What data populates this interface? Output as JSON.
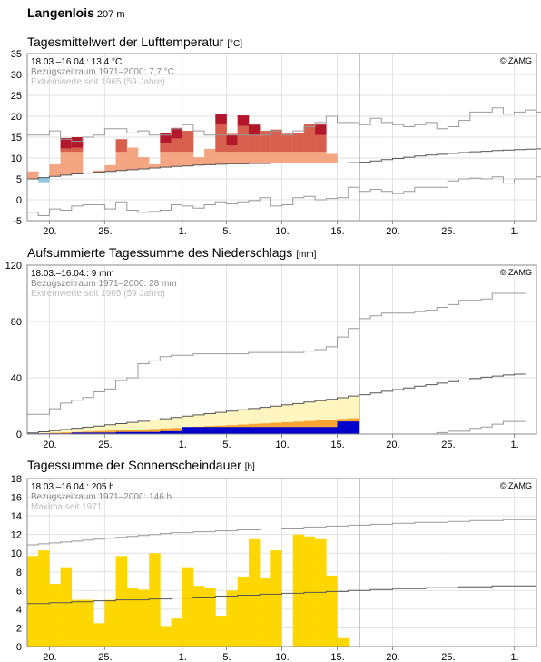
{
  "station": {
    "name": "Langenlois",
    "elevation": "207 m"
  },
  "x_tick_labels": [
    {
      "day": 2,
      "label": "20."
    },
    {
      "day": 7,
      "label": "25."
    },
    {
      "day": 14,
      "label": "1."
    },
    {
      "day": 18,
      "label": "5."
    },
    {
      "day": 23,
      "label": "10."
    },
    {
      "day": 28,
      "label": "15."
    },
    {
      "day": 33,
      "label": "20."
    },
    {
      "day": 38,
      "label": "25."
    },
    {
      "day": 44,
      "label": "1."
    }
  ],
  "copyright": "© ZAMG",
  "chart_data": [
    {
      "id": "temperature",
      "type": "bar",
      "title": "Tagesmittelwert der Lufttemperatur",
      "unit": "[°C]",
      "info": [
        "18.03.–16.04.: 13,4 °C",
        "Bezugszeitraum 1971–2000: 7,7 °C",
        "Extremwerte seit 1965 (59 Jahre)"
      ],
      "ylim": [
        -5,
        35
      ],
      "yticks": [
        -5,
        0,
        5,
        10,
        15,
        20,
        25,
        30,
        35
      ],
      "colors": {
        "above": "#f4a582",
        "warm": "#d6604d",
        "record": "#b2182b",
        "below": "#92c5de"
      },
      "days": [
        0,
        1,
        2,
        3,
        4,
        5,
        6,
        7,
        8,
        9,
        10,
        11,
        12,
        13,
        14,
        15,
        16,
        17,
        18,
        19,
        20,
        21,
        22,
        23,
        24,
        25,
        26,
        27,
        28,
        29
      ],
      "values": [
        6.8,
        4.2,
        8.5,
        14.0,
        14.8,
        0,
        7.0,
        8.3,
        14.5,
        12.5,
        10.2,
        8.5,
        16.0,
        17.2,
        16.5,
        10.2,
        12.2,
        20.5,
        16.0,
        20.2,
        17.2,
        16.5,
        16.8,
        15.8,
        16.0,
        18.2,
        18.0,
        11.0,
        0,
        0
      ],
      "records": [
        0,
        0,
        0,
        14.8,
        15.0,
        0,
        0,
        0,
        0,
        0,
        0,
        0,
        16.0,
        17.2,
        0,
        0,
        0,
        20.5,
        15.5,
        20.2,
        18.0,
        0,
        0,
        0,
        0,
        0,
        18.0,
        0,
        0,
        0
      ],
      "normal": [
        5.0,
        5.3,
        5.6,
        5.9,
        6.2,
        6.4,
        6.6,
        6.8,
        7.0,
        7.2,
        7.4,
        7.6,
        7.8,
        8.0,
        8.1,
        8.3,
        8.4,
        8.5,
        8.6,
        8.6,
        8.7,
        8.7,
        8.8,
        8.8,
        8.8,
        8.8,
        8.8,
        8.8,
        8.8,
        8.9,
        9.0,
        9.3,
        9.6,
        9.9,
        10.2,
        10.5,
        10.7,
        10.9,
        11.1,
        11.3,
        11.5,
        11.6,
        11.8,
        11.9,
        12.0,
        12.1,
        12.2
      ],
      "extreme_max": [
        15.5,
        15.5,
        16.5,
        14.5,
        14.0,
        15.0,
        15.5,
        17.0,
        17.0,
        16.0,
        16.5,
        15.5,
        15.5,
        17.0,
        18.0,
        16.5,
        15.5,
        15.5,
        15.5,
        15.5,
        15.5,
        15.5,
        16.5,
        15.5,
        16.5,
        17.5,
        18.5,
        20.0,
        18.5,
        18.5,
        18.0,
        19.5,
        18.5,
        18.0,
        17.5,
        18.0,
        18.5,
        17.0,
        17.5,
        19.0,
        21.0,
        21.0,
        22.0,
        20.5,
        21.0,
        21.5,
        21.0
      ],
      "extreme_min": [
        -3.0,
        -3.8,
        -2.2,
        -2.5,
        -1.5,
        -1.2,
        -1.2,
        -2.2,
        -0.5,
        -2.5,
        -3.0,
        -2.8,
        -2.5,
        -1.2,
        -1.5,
        -2.0,
        -1.2,
        -0.5,
        -1.0,
        -0.5,
        -0.2,
        0.5,
        -1.5,
        -1.2,
        0.5,
        0.8,
        0.0,
        0.3,
        0.5,
        3.0,
        2.0,
        2.5,
        2.0,
        1.5,
        2.0,
        3.0,
        3.0,
        3.0,
        4.5,
        5.0,
        5.2,
        5.0,
        5.5,
        4.0,
        5.0,
        5.0,
        5.5
      ]
    },
    {
      "id": "precipitation",
      "type": "area",
      "title": "Aufsummierte Tagessumme des Niederschlags",
      "unit": "[mm]",
      "info": [
        "18.03.–16.04.: 9 mm",
        "Bezugszeitraum 1971–2000: 28 mm",
        "Extremwerte seit 1965 (59 Jahre)"
      ],
      "ylim": [
        0,
        120
      ],
      "yticks": [
        0,
        40,
        80,
        120
      ],
      "colors": {
        "normal_band": "#fff5bf",
        "normal_band_low": "#fbd38a",
        "low": "#f6a535",
        "actual": "#0000cc"
      },
      "actual_cumulative": [
        0.5,
        0.5,
        0.5,
        0.5,
        1.0,
        1.0,
        1.0,
        1.0,
        1.5,
        1.5,
        1.5,
        1.5,
        2.0,
        2.0,
        5.0,
        5.0,
        5.0,
        5.0,
        5.0,
        5.0,
        5.0,
        5.0,
        5.0,
        5.0,
        5.0,
        5.0,
        5.0,
        5.0,
        9.0,
        9.0
      ],
      "normal_cumulative": [
        0.8,
        1.6,
        2.4,
        3.2,
        4.1,
        4.9,
        5.7,
        6.6,
        7.4,
        8.3,
        9.1,
        10.0,
        10.9,
        11.8,
        12.7,
        13.6,
        14.5,
        15.4,
        16.3,
        17.2,
        18.1,
        19.0,
        19.9,
        20.8,
        21.7,
        22.7,
        23.7,
        24.7,
        25.8,
        27.0,
        28.0,
        29.2,
        30.4,
        31.6,
        32.8,
        34.0,
        35.1,
        36.2,
        37.3,
        38.4,
        39.4,
        40.4,
        41.2,
        42.0,
        42.6
      ],
      "low_band_upper": [
        0.3,
        0.6,
        0.9,
        1.2,
        1.5,
        1.8,
        2.1,
        2.4,
        2.7,
        3.0,
        3.3,
        3.6,
        4.0,
        4.4,
        4.8,
        5.2,
        5.6,
        6.0,
        6.4,
        6.8,
        7.2,
        7.6,
        8.0,
        8.4,
        8.8,
        9.3,
        9.8,
        10.3,
        10.8,
        11.3
      ],
      "extreme_max": [
        14,
        14,
        18,
        22,
        24,
        26,
        30,
        32,
        38,
        40,
        50,
        52,
        55,
        56,
        56,
        57,
        57,
        57,
        57,
        57,
        58,
        58,
        58,
        58,
        58,
        59,
        60,
        62,
        69,
        75,
        82,
        84,
        86,
        86,
        86,
        87,
        88,
        90,
        92,
        95,
        95,
        96,
        100,
        100,
        100
      ],
      "extreme_min": [
        0,
        0,
        0,
        0,
        0,
        0,
        0,
        0,
        0,
        0,
        0,
        0,
        0,
        0,
        0,
        0,
        0,
        0,
        0,
        0,
        0,
        0,
        0,
        0,
        0,
        0,
        0,
        0,
        0,
        0,
        0,
        0,
        0,
        0,
        0,
        0,
        0,
        1,
        2,
        2,
        4,
        5,
        7,
        9,
        9
      ]
    },
    {
      "id": "sunshine",
      "type": "bar",
      "title": "Tagessumme der Sonnenscheindauer",
      "unit": "[h]",
      "info": [
        "18.03.–16.04.: 205 h",
        "Bezugszeitraum 1971–2000: 146 h",
        "Maxima seit 1971"
      ],
      "ylim": [
        0,
        18
      ],
      "yticks": [
        0,
        2,
        4,
        6,
        8,
        10,
        12,
        14,
        16,
        18
      ],
      "colors": {
        "bar": "#ffd700"
      },
      "values": [
        9.7,
        10.3,
        6.7,
        8.5,
        5.0,
        5.0,
        2.5,
        5.0,
        9.7,
        6.3,
        6.1,
        10.0,
        2.2,
        3.0,
        8.5,
        6.5,
        6.3,
        3.3,
        6.0,
        7.5,
        11.5,
        7.3,
        10.3,
        0,
        12.0,
        11.8,
        11.5,
        7.6,
        0.9,
        0
      ],
      "normal": [
        4.6,
        4.6,
        4.7,
        4.7,
        4.8,
        4.8,
        4.9,
        4.9,
        5.0,
        5.0,
        5.0,
        5.1,
        5.1,
        5.2,
        5.2,
        5.3,
        5.3,
        5.4,
        5.4,
        5.5,
        5.5,
        5.6,
        5.6,
        5.7,
        5.7,
        5.8,
        5.8,
        5.9,
        5.9,
        6.0,
        6.0,
        6.1,
        6.1,
        6.2,
        6.2,
        6.2,
        6.3,
        6.3,
        6.3,
        6.4,
        6.4,
        6.4,
        6.5,
        6.5,
        6.5,
        6.5
      ],
      "maxima": [
        10.9,
        11.0,
        11.1,
        11.2,
        11.3,
        11.4,
        11.5,
        11.6,
        11.7,
        11.8,
        11.9,
        12.0,
        12.1,
        12.2,
        12.2,
        12.3,
        12.3,
        12.4,
        12.4,
        12.5,
        12.5,
        12.6,
        12.6,
        12.7,
        12.7,
        12.8,
        12.8,
        12.9,
        12.9,
        13.0,
        13.0,
        13.1,
        13.1,
        13.2,
        13.2,
        13.3,
        13.3,
        13.3,
        13.4,
        13.4,
        13.5,
        13.5,
        13.5,
        13.6,
        13.6,
        13.6
      ]
    }
  ]
}
